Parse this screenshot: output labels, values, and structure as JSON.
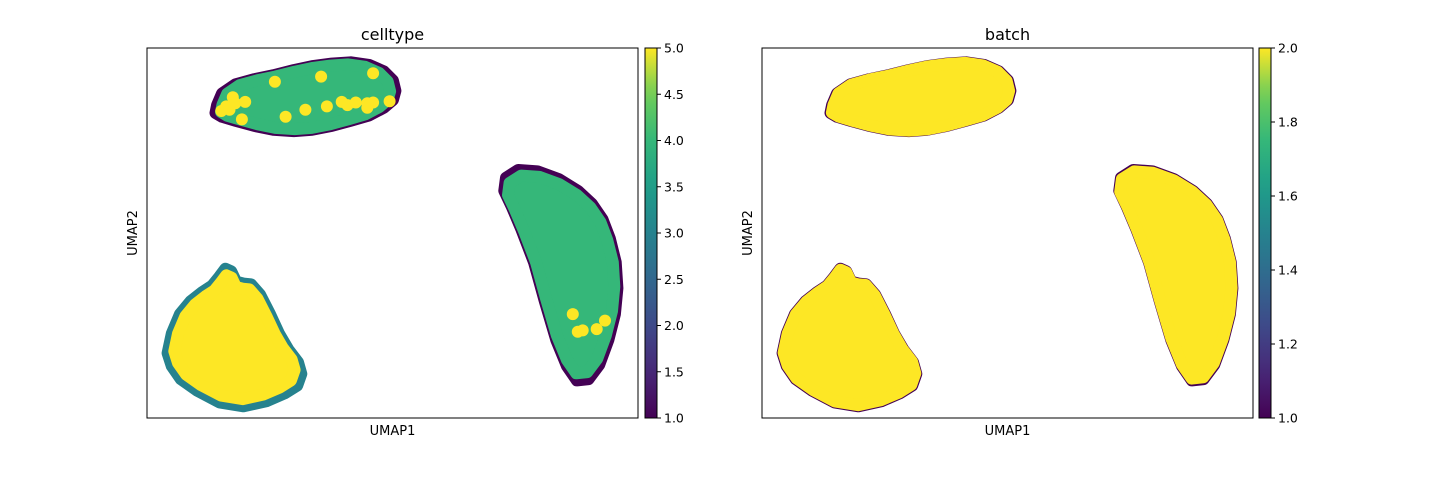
{
  "chart_data": [
    {
      "type": "scatter",
      "title": "celltype",
      "xlabel": "UMAP1",
      "ylabel": "UMAP2",
      "ticks_hidden": true,
      "colorbar": {
        "colormap": "viridis",
        "range": [
          1.0,
          5.0
        ],
        "ticks": [
          1.0,
          1.5,
          2.0,
          2.5,
          3.0,
          3.5,
          4.0,
          4.5,
          5.0
        ],
        "tick_labels": [
          "1.0",
          "1.5",
          "2.0",
          "2.5",
          "3.0",
          "3.5",
          "4.0",
          "4.5",
          "5.0"
        ]
      },
      "clusters": [
        {
          "name": "top-left",
          "x": [
            6.08,
            6.1,
            6.16,
            6.32,
            6.55,
            6.78,
            7.03,
            7.25,
            7.49,
            7.72,
            7.94,
            8.12,
            8.23,
            8.26,
            8.23,
            8.12,
            7.94,
            7.72,
            7.49,
            7.25,
            7.03,
            6.78,
            6.55,
            6.32,
            6.16
          ],
          "y": [
            12.5,
            12.62,
            12.8,
            12.94,
            13.02,
            13.08,
            13.16,
            13.22,
            13.26,
            13.28,
            13.24,
            13.14,
            13.0,
            12.84,
            12.7,
            12.58,
            12.46,
            12.38,
            12.3,
            12.24,
            12.22,
            12.24,
            12.3,
            12.38,
            12.44
          ],
          "layers": [
            {
              "value": 1.0,
              "scale": 1.0
            },
            {
              "value": 4.0,
              "scale": 0.94
            }
          ],
          "points": {
            "value": 5.0,
            "x": [
              6.15,
              6.21,
              6.25,
              6.29,
              6.32,
              6.4,
              6.44,
              6.8,
              6.93,
              7.17,
              7.36,
              7.43,
              7.61,
              7.68,
              7.78,
              7.99,
              7.92,
              7.92,
              7.99,
              8.19
            ],
            "y": [
              12.53,
              12.6,
              12.55,
              12.74,
              12.65,
              12.4,
              12.67,
              12.98,
              12.44,
              12.55,
              13.06,
              12.6,
              12.67,
              12.62,
              12.66,
              12.66,
              12.58,
              12.65,
              13.11,
              12.68
            ]
          }
        },
        {
          "name": "bottom-left",
          "x": [
            5.5,
            5.55,
            5.65,
            5.78,
            5.92,
            6.04,
            6.13,
            6.2,
            6.27,
            6.33,
            6.42,
            6.51,
            6.62,
            6.74,
            6.85,
            6.96,
            7.08,
            7.12,
            7.07,
            6.92,
            6.7,
            6.42,
            6.13,
            5.86,
            5.66,
            5.55
          ],
          "y": [
            8.8,
            9.1,
            9.4,
            9.6,
            9.74,
            9.84,
            9.98,
            10.1,
            10.06,
            9.9,
            9.87,
            9.86,
            9.7,
            9.4,
            9.1,
            8.86,
            8.66,
            8.48,
            8.3,
            8.18,
            8.06,
            7.98,
            8.04,
            8.22,
            8.4,
            8.6
          ],
          "layers": [
            {
              "value": 3.0,
              "scale": 1.0
            },
            {
              "value": 5.0,
              "scale": 0.9
            }
          ],
          "points": {
            "value": 5.0,
            "x": [],
            "y": []
          }
        },
        {
          "name": "right",
          "x": [
            9.58,
            9.6,
            9.75,
            9.98,
            10.24,
            10.47,
            10.64,
            10.77,
            10.86,
            10.93,
            10.95,
            10.92,
            10.84,
            10.73,
            10.6,
            10.46,
            10.34,
            10.21,
            10.07,
            9.94,
            9.79,
            9.67
          ],
          "y": [
            11.3,
            11.5,
            11.62,
            11.6,
            11.48,
            11.3,
            11.1,
            10.86,
            10.56,
            10.2,
            9.8,
            9.4,
            9.0,
            8.62,
            8.4,
            8.38,
            8.6,
            9.0,
            9.6,
            10.2,
            10.7,
            11.06
          ],
          "layers": [
            {
              "value": 1.0,
              "scale": 1.0
            },
            {
              "value": 4.0,
              "scale": 0.94
            }
          ],
          "points": {
            "value": 5.0,
            "x": [
              10.41,
              10.53,
              10.7,
              10.8,
              10.47
            ],
            "y": [
              9.4,
              9.15,
              9.17,
              9.3,
              9.13
            ]
          }
        }
      ]
    },
    {
      "type": "scatter",
      "title": "batch",
      "xlabel": "UMAP1",
      "ylabel": "UMAP2",
      "ticks_hidden": true,
      "colorbar": {
        "colormap": "viridis",
        "range": [
          1.0,
          2.0
        ],
        "ticks": [
          1.0,
          1.2,
          1.4,
          1.6,
          1.8,
          2.0
        ],
        "tick_labels": [
          "1.0",
          "1.2",
          "1.4",
          "1.6",
          "1.8",
          "2.0"
        ]
      },
      "clusters": [
        {
          "name": "top-left",
          "x": [
            6.08,
            6.1,
            6.16,
            6.32,
            6.55,
            6.78,
            7.03,
            7.25,
            7.49,
            7.72,
            7.94,
            8.12,
            8.23,
            8.26,
            8.23,
            8.12,
            7.94,
            7.72,
            7.49,
            7.25,
            7.03,
            6.78,
            6.55,
            6.32,
            6.16
          ],
          "y": [
            12.5,
            12.62,
            12.8,
            12.94,
            13.02,
            13.08,
            13.16,
            13.22,
            13.26,
            13.28,
            13.24,
            13.14,
            13.0,
            12.84,
            12.7,
            12.58,
            12.46,
            12.38,
            12.3,
            12.24,
            12.22,
            12.24,
            12.3,
            12.38,
            12.44
          ],
          "layers": [
            {
              "value": 1.0,
              "scale": 1.0
            },
            {
              "value": 2.0,
              "scale": 0.985
            }
          ],
          "points": {
            "value": 2.0,
            "x": [],
            "y": []
          }
        },
        {
          "name": "bottom-left",
          "x": [
            5.5,
            5.55,
            5.65,
            5.78,
            5.92,
            6.04,
            6.13,
            6.2,
            6.27,
            6.33,
            6.42,
            6.51,
            6.62,
            6.74,
            6.85,
            6.96,
            7.08,
            7.12,
            7.07,
            6.92,
            6.7,
            6.42,
            6.13,
            5.86,
            5.66,
            5.55
          ],
          "y": [
            8.8,
            9.1,
            9.4,
            9.6,
            9.74,
            9.84,
            9.98,
            10.1,
            10.06,
            9.9,
            9.87,
            9.86,
            9.7,
            9.4,
            9.1,
            8.86,
            8.66,
            8.48,
            8.3,
            8.18,
            8.06,
            7.98,
            8.04,
            8.22,
            8.4,
            8.6
          ],
          "layers": [
            {
              "value": 1.0,
              "scale": 1.0
            },
            {
              "value": 2.0,
              "scale": 0.985
            }
          ],
          "points": {
            "value": 2.0,
            "x": [],
            "y": []
          }
        },
        {
          "name": "right",
          "x": [
            9.58,
            9.6,
            9.75,
            9.98,
            10.24,
            10.47,
            10.64,
            10.77,
            10.86,
            10.93,
            10.95,
            10.92,
            10.84,
            10.73,
            10.6,
            10.46,
            10.34,
            10.21,
            10.07,
            9.94,
            9.79,
            9.67
          ],
          "y": [
            11.3,
            11.5,
            11.62,
            11.6,
            11.48,
            11.3,
            11.1,
            10.86,
            10.56,
            10.2,
            9.8,
            9.4,
            9.0,
            8.62,
            8.4,
            8.38,
            8.6,
            9.0,
            9.6,
            10.2,
            10.7,
            11.06
          ],
          "layers": [
            {
              "value": 1.0,
              "scale": 1.0
            },
            {
              "value": 2.0,
              "scale": 0.985
            }
          ],
          "points": {
            "value": 2.0,
            "x": [],
            "y": []
          }
        }
      ]
    }
  ]
}
